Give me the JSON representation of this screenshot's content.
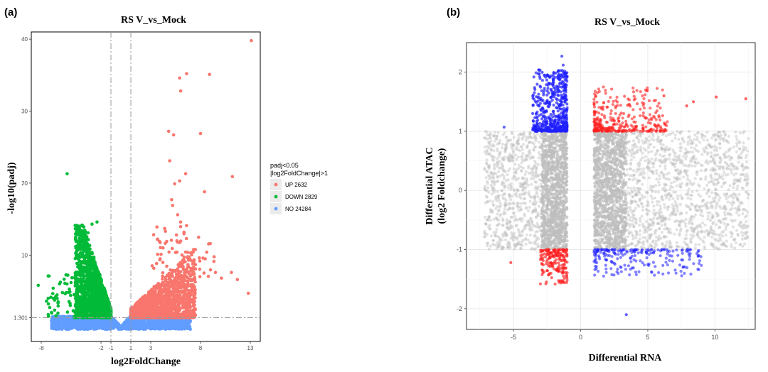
{
  "chart_data": [
    {
      "panel": "(a)",
      "type": "scatter",
      "title": "RS V_vs_Mock",
      "xlabel": "log2FoldChange",
      "ylabel": "-log10(padj)",
      "xlim": [
        -9,
        14
      ],
      "ylim": [
        -2,
        41
      ],
      "xticks": [
        -8,
        -2,
        -1,
        1,
        3,
        8,
        13
      ],
      "yticks": [
        1.301,
        10,
        20,
        30,
        40
      ],
      "threshold_lines": {
        "x": [
          -1,
          1
        ],
        "y": 1.301
      },
      "grid": false,
      "legend": {
        "title": "padj<0.05",
        "subtitle": "|log2FoldChange|>1",
        "placement": "right",
        "entries": [
          {
            "label": "UP 2632",
            "color": "#f8766d"
          },
          {
            "label": "DOWN 2829",
            "color": "#00ba38"
          },
          {
            "label": "NO 24284",
            "color": "#619cff"
          }
        ]
      },
      "series": [
        {
          "category": "UP",
          "color": "#f8766d",
          "points": [
            [
              13.1,
              39.8
            ],
            [
              8.9,
              35.1
            ],
            [
              6.6,
              35.2
            ],
            [
              5.9,
              34.6
            ],
            [
              6.0,
              32.8
            ],
            [
              4.8,
              27.2
            ],
            [
              5.3,
              26.7
            ],
            [
              8.0,
              26.9
            ],
            [
              4.9,
              23.1
            ],
            [
              11.2,
              20.9
            ],
            [
              6.5,
              21.3
            ],
            [
              5.9,
              20.3
            ],
            [
              8.4,
              18.8
            ],
            [
              5.4,
              19.9
            ],
            [
              5.1,
              17.7
            ],
            [
              5.2,
              16.9
            ],
            [
              5.7,
              15.6
            ],
            [
              6.0,
              14.6
            ],
            [
              6.6,
              14.1
            ],
            [
              4.4,
              13.7
            ],
            [
              9.5,
              7.6
            ],
            [
              10.1,
              6.8
            ],
            [
              11.1,
              7.6
            ],
            [
              12.8,
              4.7
            ],
            [
              11.7,
              6.6
            ]
          ]
        },
        {
          "category": "DOWN",
          "color": "#00ba38",
          "points": [
            [
              -5.4,
              21.3
            ],
            [
              -8.3,
              5.8
            ],
            [
              -2.4,
              14.6
            ],
            [
              -2.9,
              14.3
            ],
            [
              -3.3,
              13.1
            ],
            [
              -4.1,
              11.2
            ],
            [
              -6.8,
              5.4
            ],
            [
              -7.3,
              4.0
            ],
            [
              -6.3,
              3.5
            ]
          ]
        },
        {
          "category": "NO",
          "color": "#619cff",
          "points": []
        }
      ]
    },
    {
      "panel": "(b)",
      "type": "scatter",
      "title": "RS V_vs_Mock",
      "xlabel": "Differential RNA",
      "ylabel": "Differential ATAC",
      "ylabel2": "(log2 Foldchange)",
      "xlim": [
        -8.5,
        13
      ],
      "ylim": [
        -2.35,
        2.5
      ],
      "xticks": [
        -5,
        0,
        5,
        10
      ],
      "yticks": [
        -2,
        -1,
        0,
        1,
        2
      ],
      "grid": true,
      "series": [
        {
          "category": "up-up",
          "color": "#ff1f1f"
        },
        {
          "category": "down-up",
          "color": "#1f1fff"
        },
        {
          "category": "up-down",
          "color": "#1f1fff"
        },
        {
          "category": "down-down",
          "color": "#ff1f1f"
        },
        {
          "category": "other",
          "color": "#bebebe"
        }
      ],
      "highlight_points": [
        [
          -1.4,
          2.27
        ],
        [
          -1.3,
          2.12
        ],
        [
          -5.7,
          1.07
        ],
        [
          12.3,
          1.55
        ],
        [
          8.4,
          1.5
        ],
        [
          7.9,
          1.43
        ],
        [
          6.2,
          1.6
        ],
        [
          10.1,
          1.58
        ],
        [
          3.4,
          -2.1
        ],
        [
          -5.2,
          -1.22
        ]
      ]
    }
  ]
}
